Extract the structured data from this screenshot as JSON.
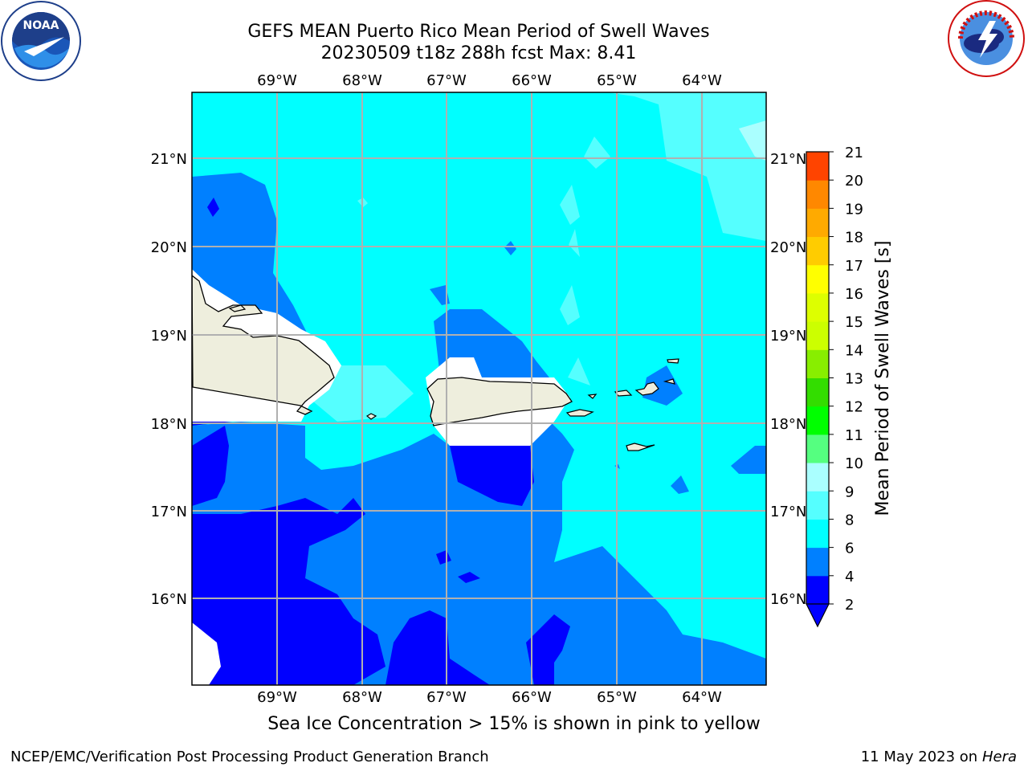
{
  "title": {
    "line1": "GEFS MEAN Puerto Rico Mean Period of Swell Waves",
    "line2": "20230509 t18z 288h fcst   Max: 8.41"
  },
  "map": {
    "lon_ticks": [
      "69°W",
      "68°W",
      "67°W",
      "66°W",
      "65°W",
      "64°W"
    ],
    "lat_ticks": [
      "21°N",
      "20°N",
      "19°N",
      "18°N",
      "17°N",
      "16°N"
    ],
    "land_color": "#eeeedd",
    "gridline_color": "#b0b0b0"
  },
  "colorbar": {
    "label": "Mean Period of Swell Waves [s]",
    "tick_labels": [
      "2",
      "4",
      "6",
      "8",
      "9",
      "10",
      "11",
      "12",
      "13",
      "14",
      "15",
      "16",
      "17",
      "18",
      "19",
      "20",
      "21"
    ],
    "level_colors": [
      "#0000ff",
      "#0080ff",
      "#00ffff",
      "#55ffff",
      "#aaffff",
      "#55ff80",
      "#00ff00",
      "#33dd00",
      "#88ee00",
      "#ccff00",
      "#ddff00",
      "#ffff00",
      "#ffcc00",
      "#ffaa00",
      "#ff8800",
      "#ff4400",
      "#ff1100",
      "#ff0000"
    ],
    "under_color": "#0000ff"
  },
  "caption": "Sea Ice Concentration > 15% is shown in pink to yellow",
  "footer": {
    "left": "NCEP/EMC/Verification Post Processing Product Generation Branch",
    "date": "11 May 2023 on",
    "host": "Hera"
  },
  "logos": {
    "left": "NOAA",
    "right": "NATIONAL WEATHER SERVICE"
  },
  "chart_data": {
    "type": "heatmap",
    "title": "GEFS MEAN Puerto Rico Mean Period of Swell Waves",
    "subtitle": "20230509 t18z 288h fcst   Max: 8.41",
    "colorbar_label": "Mean Period of Swell Waves [s]",
    "levels": [
      2,
      4,
      6,
      8,
      9,
      10,
      11,
      12,
      13,
      14,
      15,
      16,
      17,
      18,
      19,
      20,
      21
    ],
    "max": 8.41,
    "lon_range": [
      -70.0,
      -63.25
    ],
    "lat_range": [
      15.0,
      21.75
    ],
    "grid": true
  }
}
